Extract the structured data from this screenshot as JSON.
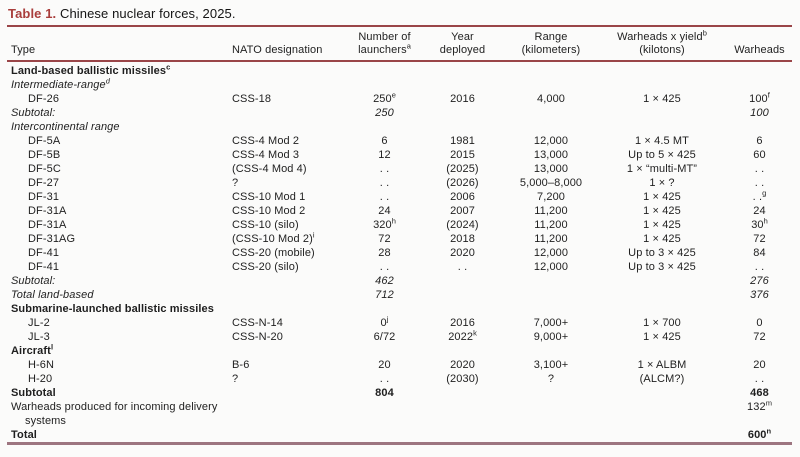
{
  "title": {
    "label": "Table 1.",
    "caption": " Chinese nuclear forces, 2025."
  },
  "colors": {
    "accent": "#a93e3c",
    "rule": "#9a4548",
    "rule_bottom": "#9d7580",
    "text": "#1f1f1f",
    "background": "#fbfbfa"
  },
  "table": {
    "columns": [
      {
        "id": "type",
        "align": "left",
        "lines": [
          "Type"
        ]
      },
      {
        "id": "nato-designation",
        "align": "left",
        "lines": [
          "NATO designation"
        ]
      },
      {
        "id": "number-of-launchers",
        "align": "center",
        "lines": [
          "Number of",
          "launchers^a"
        ]
      },
      {
        "id": "year-deployed",
        "align": "center",
        "lines": [
          "Year",
          "deployed"
        ]
      },
      {
        "id": "range-kilometers",
        "align": "center",
        "lines": [
          "Range",
          "(kilometers)"
        ]
      },
      {
        "id": "warheads-x-yield",
        "align": "center",
        "lines": [
          "Warheads x yield^b",
          "(kilotons)"
        ]
      },
      {
        "id": "warheads",
        "align": "center",
        "lines": [
          "Warheads"
        ]
      }
    ],
    "rows": [
      {
        "style": "section",
        "cells": [
          "Land-based ballistic missiles^c",
          "",
          "",
          "",
          "",
          "",
          ""
        ]
      },
      {
        "style": "subsection",
        "cells": [
          "Intermediate-range^d",
          "",
          "",
          "",
          "",
          "",
          ""
        ]
      },
      {
        "style": "data",
        "cells": [
          "DF-26",
          "CSS-18",
          "250^e",
          "2016",
          "4,000",
          "1 × 425",
          "100^f"
        ]
      },
      {
        "style": "subtotal",
        "cells": [
          "Subtotal:",
          "",
          "250",
          "",
          "",
          "",
          "100"
        ]
      },
      {
        "style": "subsection",
        "cells": [
          "Intercontinental range",
          "",
          "",
          "",
          "",
          "",
          ""
        ]
      },
      {
        "style": "data",
        "cells": [
          "DF-5A",
          "CSS-4 Mod 2",
          "6",
          "1981",
          "12,000",
          "1 × 4.5 MT",
          "6"
        ]
      },
      {
        "style": "data",
        "cells": [
          "DF-5B",
          "CSS-4 Mod 3",
          "12",
          "2015",
          "13,000",
          "Up to 5 × 425",
          "60"
        ]
      },
      {
        "style": "data",
        "cells": [
          "DF-5C",
          "(CSS-4 Mod 4)",
          ". .",
          "(2025)",
          "13,000",
          "1 × “multi-MT”",
          ". ."
        ]
      },
      {
        "style": "data",
        "cells": [
          "DF-27",
          "?",
          ". .",
          "(2026)",
          "5,000–8,000",
          "1 × ?",
          ". ."
        ]
      },
      {
        "style": "data",
        "cells": [
          "DF-31",
          "CSS-10 Mod 1",
          ". .",
          "2006",
          "7,200",
          "1 × 425",
          ". .^g"
        ]
      },
      {
        "style": "data",
        "cells": [
          "DF-31A",
          "CSS-10 Mod 2",
          "24",
          "2007",
          "11,200",
          "1 × 425",
          "24"
        ]
      },
      {
        "style": "data",
        "cells": [
          "DF-31A",
          "CSS-10 (silo)",
          "320^h",
          "(2024)",
          "11,200",
          "1 × 425",
          "30^h"
        ]
      },
      {
        "style": "data",
        "cells": [
          "DF-31AG",
          "(CSS-10 Mod 2)^i",
          "72",
          "2018",
          "11,200",
          "1 × 425",
          "72"
        ]
      },
      {
        "style": "data",
        "cells": [
          "DF-41",
          "CSS-20 (mobile)",
          "28",
          "2020",
          "12,000",
          "Up to 3 × 425",
          "84"
        ]
      },
      {
        "style": "data",
        "cells": [
          "DF-41",
          "CSS-20 (silo)",
          ". .",
          ". .",
          "12,000",
          "Up to 3 × 425",
          ". ."
        ]
      },
      {
        "style": "subtotal",
        "cells": [
          "Subtotal:",
          "",
          "462",
          "",
          "",
          "",
          "276"
        ]
      },
      {
        "style": "subtotal",
        "cells": [
          "Total land-based",
          "",
          "712",
          "",
          "",
          "",
          "376"
        ]
      },
      {
        "style": "section",
        "cells": [
          "Submarine-launched ballistic missiles",
          "",
          "",
          "",
          "",
          "",
          ""
        ]
      },
      {
        "style": "data",
        "cells": [
          "JL-2",
          "CSS-N-14",
          "0^j",
          "2016",
          "7,000+",
          "1 × 700",
          "0"
        ]
      },
      {
        "style": "data",
        "cells": [
          "JL-3",
          "CSS-N-20",
          "6/72",
          "2022^k",
          "9,000+",
          "1 × 425",
          "72"
        ]
      },
      {
        "style": "section",
        "cells": [
          "Aircraft^l",
          "",
          "",
          "",
          "",
          "",
          ""
        ]
      },
      {
        "style": "data",
        "cells": [
          "H-6N",
          "B-6",
          "20",
          "2020",
          "3,100+",
          "1 × ALBM",
          "20"
        ]
      },
      {
        "style": "data",
        "cells": [
          "H-20",
          "?",
          ". .",
          "(2030)",
          "?",
          "(ALCM?)",
          ". ."
        ]
      },
      {
        "style": "grand",
        "cells": [
          "Subtotal",
          "",
          "804",
          "",
          "",
          "",
          "468"
        ]
      },
      {
        "style": "plain",
        "cells": [
          "Warheads produced for incoming delivery\nsystems",
          "",
          "",
          "",
          "",
          "",
          "132^m"
        ]
      },
      {
        "style": "grand",
        "cells": [
          "Total",
          "",
          "",
          "",
          "",
          "",
          "600^n"
        ]
      }
    ]
  }
}
